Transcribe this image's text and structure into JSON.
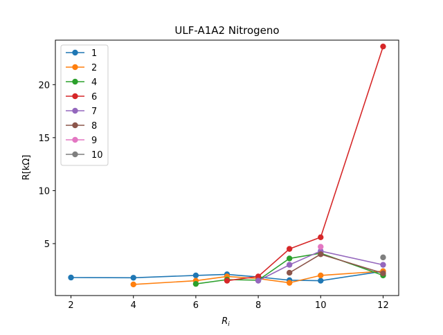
{
  "chart_data": {
    "type": "line",
    "title": "ULF-A1A2 Nitrogeno",
    "xlabel_main": "R",
    "xlabel_sub": "i",
    "ylabel": "R[kΩ]",
    "xlim": [
      1.5,
      12.5
    ],
    "ylim": [
      0.1,
      24.2
    ],
    "xticks": [
      2,
      4,
      6,
      8,
      10,
      12
    ],
    "yticks": [
      5,
      10,
      15,
      20
    ],
    "grid": false,
    "legend_position": "upper-left",
    "series": [
      {
        "name": "1",
        "color": "#1f77b4",
        "x": [
          2,
          4,
          6,
          7,
          8,
          9,
          10,
          12
        ],
        "y": [
          1.8,
          1.78,
          2.0,
          2.1,
          1.85,
          1.55,
          1.5,
          2.4
        ]
      },
      {
        "name": "2",
        "color": "#ff7f0e",
        "x": [
          4,
          6,
          7,
          8,
          9,
          10,
          12
        ],
        "y": [
          1.15,
          1.5,
          1.9,
          1.7,
          1.3,
          2.0,
          2.4
        ]
      },
      {
        "name": "4",
        "color": "#2ca02c",
        "x": [
          6,
          7,
          8,
          9,
          10,
          12
        ],
        "y": [
          1.2,
          1.6,
          1.55,
          3.6,
          4.1,
          2.0
        ]
      },
      {
        "name": "6",
        "color": "#d62728",
        "x": [
          7,
          8,
          9,
          10,
          12
        ],
        "y": [
          1.5,
          1.9,
          4.5,
          5.6,
          23.6
        ]
      },
      {
        "name": "7",
        "color": "#9467bd",
        "x": [
          8,
          9,
          10,
          12
        ],
        "y": [
          1.5,
          3.0,
          4.3,
          3.0
        ]
      },
      {
        "name": "8",
        "color": "#8c564b",
        "x": [
          9,
          10,
          12
        ],
        "y": [
          2.25,
          4.0,
          2.2
        ]
      },
      {
        "name": "9",
        "color": "#e377c2",
        "x": [
          10
        ],
        "y": [
          4.7
        ]
      },
      {
        "name": "10",
        "color": "#7f7f7f",
        "x": [
          12
        ],
        "y": [
          3.7
        ]
      }
    ]
  }
}
